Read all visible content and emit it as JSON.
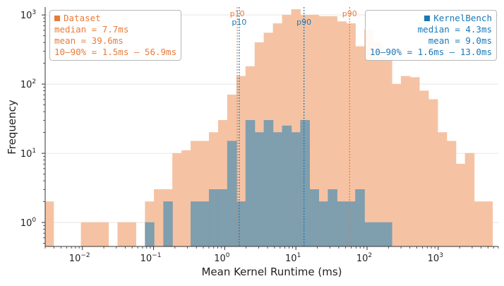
{
  "colors": {
    "dataset_fill": "#f5c3a3",
    "dataset_edge": "#f0a87e",
    "dataset_text": "#e87b3a",
    "kernelbench_fill": "#7f9eae",
    "kernelbench_text": "#1a78b8",
    "axis": "#333333"
  },
  "chart_data": {
    "type": "histogram",
    "xscale": "log",
    "yscale": "log",
    "xlabel": "Mean Kernel Runtime (ms)",
    "ylabel": "Frequency",
    "xlim": [
      0.003,
      7000
    ],
    "ylim": [
      0.45,
      1300
    ],
    "x_ticks": [
      {
        "value": 0.01,
        "base": "10",
        "exp": "−2"
      },
      {
        "value": 0.1,
        "base": "10",
        "exp": "−1"
      },
      {
        "value": 1,
        "base": "10",
        "exp": "0"
      },
      {
        "value": 10,
        "base": "10",
        "exp": "1"
      },
      {
        "value": 100,
        "base": "10",
        "exp": "2"
      },
      {
        "value": 1000,
        "base": "10",
        "exp": "3"
      }
    ],
    "y_ticks": [
      {
        "value": 1,
        "base": "10",
        "exp": "0"
      },
      {
        "value": 10,
        "base": "10",
        "exp": "1"
      },
      {
        "value": 100,
        "base": "10",
        "exp": "2"
      },
      {
        "value": 1000,
        "base": "10",
        "exp": "3"
      }
    ],
    "series": [
      {
        "name": "Dataset",
        "color": "#f5c3a3",
        "bin_edges": [
          0.00294,
          0.00395,
          0.00531,
          0.00714,
          0.0096,
          0.0129,
          0.0174,
          0.0233,
          0.0314,
          0.0422,
          0.0567,
          0.0762,
          0.102,
          0.138,
          0.185,
          0.249,
          0.334,
          0.449,
          0.604,
          0.812,
          1.09,
          1.47,
          1.97,
          2.65,
          3.56,
          4.79,
          6.44,
          8.66,
          11.6,
          15.6,
          21.0,
          28.3,
          38.0,
          51.1,
          68.7,
          92.3,
          124,
          167,
          224,
          301,
          405,
          545,
          732,
          984,
          1323,
          1779,
          2391,
          3215,
          4322,
          5811
        ],
        "counts": [
          2,
          0,
          0,
          0,
          1,
          1,
          1,
          0,
          1,
          1,
          0,
          2,
          3,
          3,
          10,
          11,
          15,
          15,
          20,
          30,
          70,
          130,
          180,
          400,
          550,
          750,
          1000,
          1200,
          1000,
          1000,
          950,
          950,
          800,
          750,
          350,
          600,
          400,
          250,
          100,
          130,
          125,
          80,
          60,
          20,
          15,
          7,
          10,
          2,
          2
        ]
      },
      {
        "name": "KernelBench",
        "color": "#7f9eae",
        "bin_edges": [
          0.0762,
          0.102,
          0.138,
          0.185,
          0.249,
          0.334,
          0.449,
          0.604,
          0.812,
          1.09,
          1.47,
          1.97,
          2.65,
          3.56,
          4.79,
          6.44,
          8.66,
          11.6,
          15.6,
          21.0,
          28.3,
          38.0,
          51.1,
          68.7,
          92.3,
          124,
          167,
          224
        ],
        "counts": [
          1,
          0,
          2,
          0,
          0,
          2,
          2,
          3,
          3,
          15,
          2,
          30,
          20,
          30,
          20,
          25,
          20,
          30,
          3,
          2,
          3,
          2,
          2,
          3,
          1,
          1,
          1
        ]
      }
    ],
    "percentile_lines": [
      {
        "series": "Dataset",
        "label": "p10",
        "x": 1.5,
        "color": "#e87b3a"
      },
      {
        "series": "Dataset",
        "label": "p90",
        "x": 56.9,
        "color": "#e87b3a"
      },
      {
        "series": "KernelBench",
        "label": "p10",
        "x": 1.6,
        "color": "#1a78b8"
      },
      {
        "series": "KernelBench",
        "label": "p90",
        "x": 13.0,
        "color": "#1a78b8"
      }
    ]
  },
  "stats": {
    "dataset": {
      "title": "Dataset",
      "median": "median = 7.7ms",
      "mean": "mean = 39.6ms",
      "range": "10–90% = 1.5ms – 56.9ms"
    },
    "kernelbench": {
      "title": "KernelBench",
      "median": "median = 4.3ms",
      "mean": "mean = 9.0ms",
      "range": "10–90% = 1.6ms – 13.0ms"
    }
  }
}
